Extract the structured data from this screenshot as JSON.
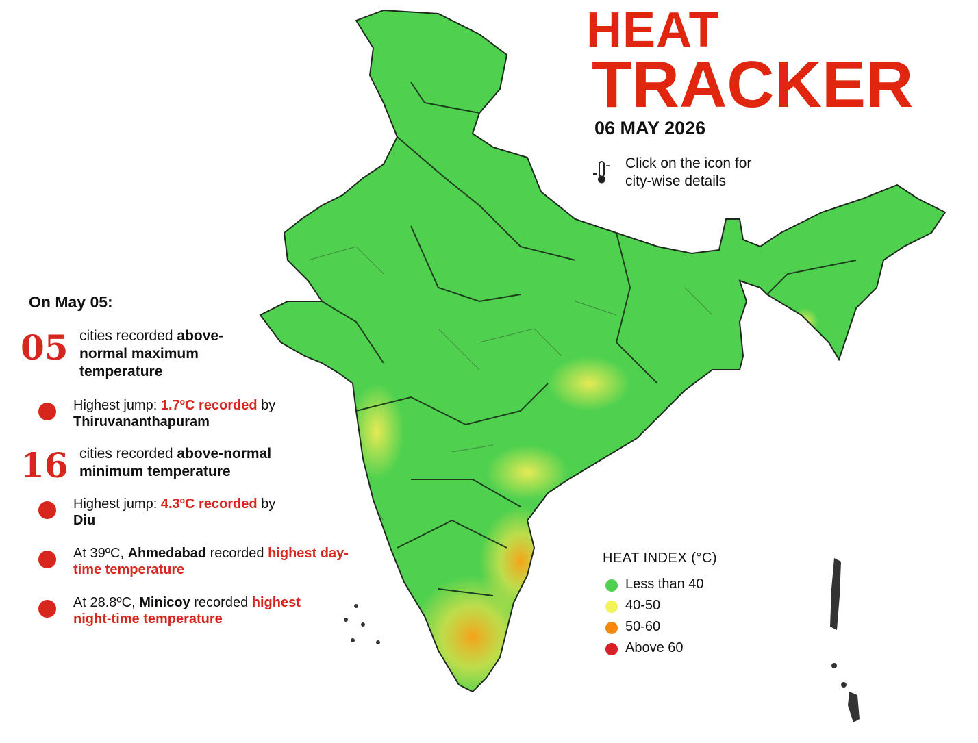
{
  "header": {
    "title_line1": "HEAT",
    "title_line2": "TRACKER",
    "date": "06 MAY 2026",
    "hint": "Click on the icon for city-wise details"
  },
  "summary": {
    "heading": "On May 05:",
    "items": [
      {
        "kind": "stat",
        "number": "05",
        "runs": [
          {
            "text": "cities recorded ",
            "style": "normal"
          },
          {
            "text": "above-normal maximum temperature",
            "style": "bold"
          }
        ]
      },
      {
        "kind": "bullet",
        "runs": [
          {
            "text": "Highest jump: ",
            "style": "normal"
          },
          {
            "text": "1.7ºC recorded",
            "style": "red"
          },
          {
            "text": " by ",
            "style": "normal"
          },
          {
            "text": "Thiruvananthapuram",
            "style": "bold"
          }
        ]
      },
      {
        "kind": "stat",
        "number": "16",
        "runs": [
          {
            "text": "cities recorded ",
            "style": "normal"
          },
          {
            "text": "above-normal minimum temperature",
            "style": "bold"
          }
        ]
      },
      {
        "kind": "bullet",
        "runs": [
          {
            "text": "Highest jump: ",
            "style": "normal"
          },
          {
            "text": "4.3ºC recorded",
            "style": "red"
          },
          {
            "text": " by ",
            "style": "normal"
          },
          {
            "text": "Diu",
            "style": "bold"
          }
        ]
      },
      {
        "kind": "bullet",
        "runs": [
          {
            "text": "At 39ºC, ",
            "style": "normal"
          },
          {
            "text": "Ahmedabad",
            "style": "bold"
          },
          {
            "text": " recorded ",
            "style": "normal"
          },
          {
            "text": "highest day-time temperature",
            "style": "red"
          }
        ]
      },
      {
        "kind": "bullet",
        "runs": [
          {
            "text": "At 28.8ºC, ",
            "style": "normal"
          },
          {
            "text": "Minicoy",
            "style": "bold"
          },
          {
            "text": " recorded ",
            "style": "normal"
          },
          {
            "text": "highest night-time temperature",
            "style": "red"
          }
        ]
      }
    ]
  },
  "legend": {
    "title": "HEAT INDEX (°C)",
    "items": [
      {
        "label": "Less than 40",
        "color": "#4fd14f"
      },
      {
        "label": "40-50",
        "color": "#f2f25a"
      },
      {
        "label": "50-60",
        "color": "#f5870f"
      },
      {
        "label": "Above 60",
        "color": "#d91f26"
      }
    ]
  }
}
